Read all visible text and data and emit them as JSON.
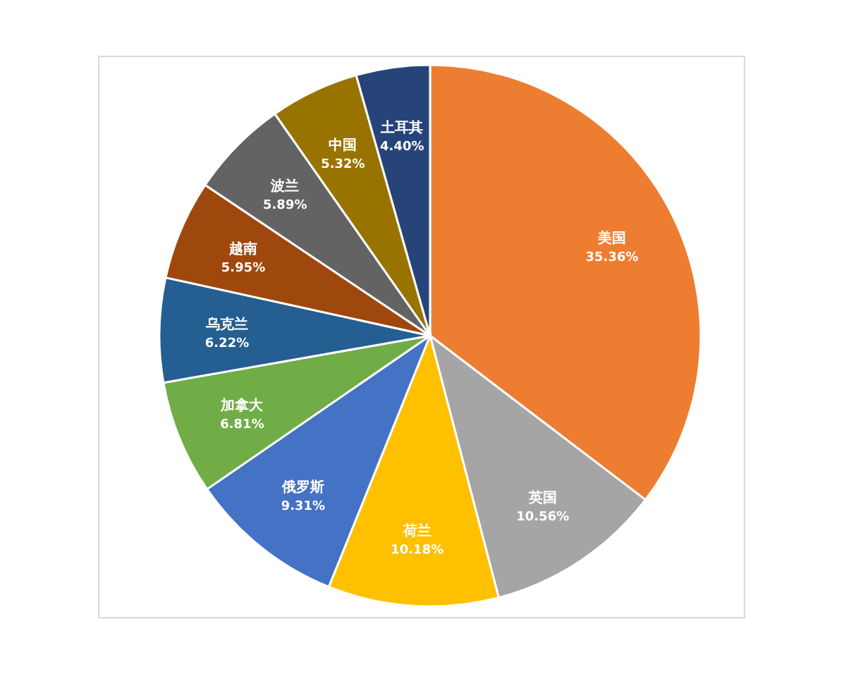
{
  "chart_data": {
    "type": "pie",
    "categories": [
      "美国",
      "英国",
      "荷兰",
      "俄罗斯",
      "加拿大",
      "乌克兰",
      "越南",
      "波兰",
      "中国",
      "土耳其"
    ],
    "values": [
      35.36,
      10.56,
      10.18,
      9.31,
      6.81,
      6.22,
      5.95,
      5.89,
      5.32,
      4.4
    ],
    "value_labels": [
      "35.36%",
      "10.56%",
      "10.18%",
      "9.31%",
      "6.81%",
      "6.22%",
      "5.95%",
      "5.89%",
      "5.32%",
      "4.40%"
    ],
    "colors": [
      "#ed7d31",
      "#a5a5a5",
      "#ffc000",
      "#4472c4",
      "#70ad47",
      "#255e91",
      "#9e480e",
      "#636363",
      "#997300",
      "#264478"
    ],
    "legend": false
  }
}
